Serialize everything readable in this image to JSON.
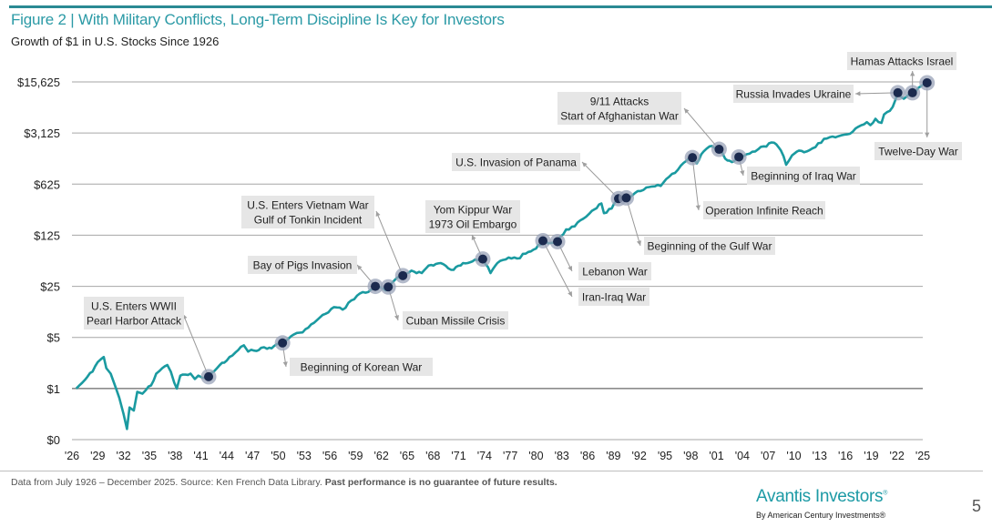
{
  "header": {
    "title": "Figure 2 | With Military Conflicts, Long-Term Discipline Is Key for Investors",
    "subtitle": "Growth of $1 in U.S. Stocks Since 1926"
  },
  "footer": {
    "source_text": "Data from July 1926 – December 2025. Source: Ken French Data Library.",
    "disclaimer": "Past performance is no guarantee of future results.",
    "logo_text": "Avantis Investors",
    "logo_mark": "®",
    "logo_subtext": "By American Century Investments®",
    "page_number": "5"
  },
  "colors": {
    "accent": "#2b9aa6",
    "line": "#1a9aa0",
    "marker": "#1b2a4e",
    "marker_halo": "#9aa3b8",
    "label_bg": "#e6e6e6",
    "grid": "#a6a6a6"
  },
  "chart_data": {
    "type": "line",
    "title": "Growth of $1 in U.S. Stocks Since 1926",
    "xlabel": "",
    "ylabel": "",
    "yscale": "log",
    "ylim": [
      0.2,
      15625
    ],
    "xlim": [
      1926,
      2025
    ],
    "grid": true,
    "legend": "none",
    "y_ticks": [
      {
        "value": 15625,
        "label": "$15,625"
      },
      {
        "value": 3125,
        "label": "$3,125"
      },
      {
        "value": 625,
        "label": "$625"
      },
      {
        "value": 125,
        "label": "$125"
      },
      {
        "value": 25,
        "label": "$25"
      },
      {
        "value": 5,
        "label": "$5"
      },
      {
        "value": 1,
        "label": "$1"
      },
      {
        "value": 0.2,
        "label": "$0"
      }
    ],
    "x_ticks": [
      "'26",
      "'29",
      "'32",
      "'35",
      "'38",
      "'41",
      "'44",
      "'47",
      "'50",
      "'53",
      "'56",
      "'59",
      "'62",
      "'65",
      "'68",
      "'71",
      "'74",
      "'77",
      "'80",
      "'83",
      "'86",
      "'89",
      "'92",
      "'95",
      "'98",
      "'01",
      "'04",
      "'07",
      "'10",
      "'13",
      "'16",
      "'19",
      "'22",
      "'25"
    ],
    "x_tick_years": [
      1926,
      1929,
      1932,
      1935,
      1938,
      1941,
      1944,
      1947,
      1950,
      1953,
      1956,
      1959,
      1962,
      1965,
      1968,
      1971,
      1974,
      1977,
      1980,
      1983,
      1986,
      1989,
      1992,
      1995,
      1998,
      2001,
      2004,
      2007,
      2010,
      2013,
      2016,
      2019,
      2022,
      2025
    ],
    "series": [
      {
        "name": "Growth of $1 in U.S. Stocks",
        "x": [
          1926.5,
          1927.2,
          1927.8,
          1928.4,
          1929.0,
          1929.7,
          1930.0,
          1930.5,
          1931.0,
          1931.5,
          1932.0,
          1932.4,
          1932.7,
          1933.2,
          1933.6,
          1934.2,
          1934.6,
          1935.2,
          1935.8,
          1936.5,
          1937.1,
          1937.5,
          1937.9,
          1938.2,
          1938.6,
          1939.2,
          1939.8,
          1940.3,
          1940.7,
          1941.2,
          1941.9,
          1942.5,
          1943.2,
          1944.0,
          1945.0,
          1946.0,
          1946.5,
          1947.2,
          1948.0,
          1948.7,
          1949.5,
          1950.5,
          1951.5,
          1952.5,
          1953.5,
          1954.5,
          1955.5,
          1956.5,
          1957.5,
          1958.5,
          1959.5,
          1960.5,
          1961.3,
          1962.5,
          1962.8,
          1963.5,
          1964.5,
          1965.5,
          1966.7,
          1967.5,
          1968.9,
          1969.8,
          1970.4,
          1971.5,
          1972.9,
          1973.8,
          1974.7,
          1975.5,
          1976.8,
          1977.8,
          1978.8,
          1980.0,
          1980.8,
          1981.7,
          1982.5,
          1983.5,
          1984.5,
          1985.5,
          1986.5,
          1987.6,
          1987.9,
          1988.8,
          1989.6,
          1990.5,
          1991.5,
          1992.5,
          1993.5,
          1994.5,
          1995.5,
          1996.5,
          1997.5,
          1998.2,
          1998.7,
          1999.5,
          2000.2,
          2001.3,
          2002.0,
          2002.8,
          2003.6,
          2004.5,
          2005.5,
          2006.5,
          2007.7,
          2008.5,
          2009.1,
          2009.8,
          2010.6,
          2011.5,
          2012.5,
          2013.5,
          2014.5,
          2015.5,
          2016.2,
          2017.5,
          2018.5,
          2018.9,
          2019.5,
          2020.2,
          2020.5,
          2021.5,
          2022.1,
          2022.8,
          2023.8,
          2024.5,
          2025.1,
          2025.5
        ],
        "values": [
          1.0,
          1.2,
          1.45,
          1.7,
          2.3,
          2.7,
          1.9,
          1.6,
          1.1,
          0.75,
          0.45,
          0.28,
          0.55,
          0.5,
          0.9,
          0.85,
          0.95,
          1.1,
          1.6,
          1.9,
          2.1,
          1.7,
          1.2,
          1.0,
          1.5,
          1.55,
          1.6,
          1.35,
          1.5,
          1.4,
          1.45,
          1.7,
          2.1,
          2.4,
          3.1,
          3.9,
          3.2,
          3.3,
          3.6,
          3.5,
          3.8,
          4.2,
          5.2,
          5.8,
          6.8,
          8.6,
          10.5,
          13,
          12,
          16,
          20,
          21,
          25,
          22,
          24.5,
          30,
          35,
          41,
          38,
          48,
          52,
          44,
          42,
          52,
          58,
          59,
          38,
          52,
          62,
          60,
          70,
          82,
          105,
          98,
          102,
          150,
          165,
          210,
          270,
          340,
          250,
          290,
          395,
          405,
          470,
          520,
          580,
          590,
          790,
          980,
          1300,
          1440,
          1200,
          1750,
          2050,
          1870,
          1400,
          1250,
          1470,
          1600,
          1750,
          2050,
          2300,
          1800,
          1150,
          1550,
          1800,
          1750,
          2000,
          2600,
          2800,
          2900,
          3000,
          3800,
          4400,
          4000,
          4900,
          4300,
          5600,
          7100,
          11100,
          9200,
          11100,
          13000,
          14500,
          15200
        ]
      }
    ],
    "events": [
      {
        "label": [
          "U.S. Enters WWII",
          "Pearl Harbor Attack"
        ],
        "x": 1941.9,
        "y": 1.45
      },
      {
        "label": [
          "Beginning of Korean War"
        ],
        "x": 1950.5,
        "y": 4.2
      },
      {
        "label": [
          "Bay of Pigs Invasion"
        ],
        "x": 1961.3,
        "y": 25
      },
      {
        "label": [
          "Cuban Missile Crisis"
        ],
        "x": 1962.8,
        "y": 24.5
      },
      {
        "label": [
          "U.S. Enters Vietnam War",
          "Gulf of Tonkin Incident"
        ],
        "x": 1964.5,
        "y": 35
      },
      {
        "label": [
          "Yom Kippur War",
          "1973 Oil Embargo"
        ],
        "x": 1973.8,
        "y": 59
      },
      {
        "label": [
          "Iran-Iraq War"
        ],
        "x": 1980.8,
        "y": 105
      },
      {
        "label": [
          "Lebanon War"
        ],
        "x": 1982.5,
        "y": 102
      },
      {
        "label": [
          "U.S. Invasion of Panama"
        ],
        "x": 1989.6,
        "y": 395
      },
      {
        "label": [
          "Beginning of the Gulf War"
        ],
        "x": 1990.5,
        "y": 405
      },
      {
        "label": [
          "Operation Infinite Reach"
        ],
        "x": 1998.2,
        "y": 1440
      },
      {
        "label": [
          "9/11 Attacks",
          "Start of Afghanistan War"
        ],
        "x": 2001.3,
        "y": 1870
      },
      {
        "label": [
          "Beginning of Iraq War"
        ],
        "x": 2003.6,
        "y": 1470
      },
      {
        "label": [
          "Russia Invades Ukraine"
        ],
        "x": 2022.1,
        "y": 11100
      },
      {
        "label": [
          "Hamas Attacks Israel"
        ],
        "x": 2023.8,
        "y": 11100
      },
      {
        "label": [
          "Twelve-Day War"
        ],
        "x": 2025.5,
        "y": 15200
      }
    ]
  }
}
